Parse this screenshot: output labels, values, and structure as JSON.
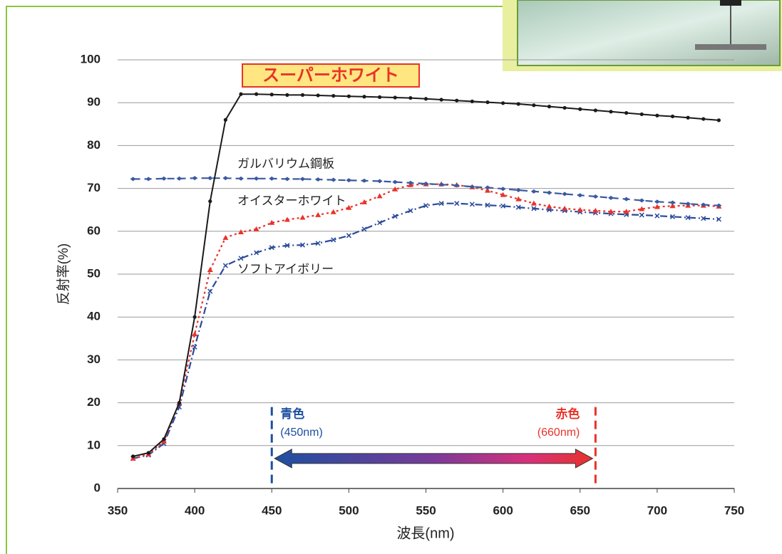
{
  "chart_data": {
    "type": "line",
    "title": "スーパーホワイト",
    "xlabel": "波長(nm)",
    "ylabel": "反射率(%)",
    "xlim": [
      350,
      750
    ],
    "xticks": [
      350,
      400,
      450,
      500,
      550,
      600,
      650,
      700,
      750
    ],
    "ylim": [
      0,
      100
    ],
    "yticks": [
      0,
      10,
      20,
      30,
      40,
      50,
      60,
      70,
      80,
      90,
      100
    ],
    "grid": true,
    "x": [
      360,
      370,
      380,
      390,
      400,
      410,
      420,
      430,
      440,
      450,
      460,
      470,
      480,
      490,
      500,
      510,
      520,
      530,
      540,
      550,
      560,
      570,
      580,
      590,
      600,
      610,
      620,
      630,
      640,
      650,
      660,
      670,
      680,
      690,
      700,
      710,
      720,
      730,
      740
    ],
    "series": [
      {
        "name": "スーパーホワイト",
        "color": "#1a1a1a",
        "line_style": "solid",
        "marker": "circle",
        "values": [
          7.5,
          8.3,
          11.5,
          20,
          40,
          67,
          86,
          92,
          92,
          91.9,
          91.8,
          91.8,
          91.7,
          91.6,
          91.5,
          91.4,
          91.3,
          91.2,
          91.1,
          90.9,
          90.7,
          90.5,
          90.3,
          90.1,
          89.9,
          89.7,
          89.4,
          89.1,
          88.8,
          88.5,
          88.2,
          87.9,
          87.6,
          87.3,
          87.0,
          86.8,
          86.5,
          86.2,
          85.9
        ]
      },
      {
        "name": "ガルバリウム鋼板",
        "color": "#3a5aa0",
        "line_style": "dashed",
        "marker": "diamond",
        "values": [
          72.2,
          72.2,
          72.3,
          72.3,
          72.4,
          72.4,
          72.4,
          72.3,
          72.3,
          72.3,
          72.2,
          72.2,
          72.1,
          72.0,
          71.9,
          71.8,
          71.7,
          71.5,
          71.3,
          71.1,
          70.9,
          70.7,
          70.4,
          70.2,
          69.9,
          69.6,
          69.3,
          69.0,
          68.7,
          68.4,
          68.1,
          67.8,
          67.5,
          67.2,
          66.9,
          66.7,
          66.4,
          66.2,
          66.0
        ]
      },
      {
        "name": "オイスターホワイト",
        "color": "#e8332a",
        "line_style": "dotted",
        "marker": "triangle",
        "values": [
          7,
          8,
          11,
          20,
          36,
          51,
          58.5,
          59.8,
          60.5,
          62,
          62.7,
          63.2,
          63.8,
          64.5,
          65.5,
          66.8,
          68.2,
          69.8,
          70.8,
          71,
          71,
          70.8,
          70.3,
          69.5,
          68.5,
          67.5,
          66.5,
          65.8,
          65.3,
          65,
          64.8,
          64.6,
          64.6,
          65.2,
          65.7,
          65.9,
          66,
          66,
          65.8
        ]
      },
      {
        "name": "ソフトアイボリー",
        "color": "#2a4a9a",
        "line_style": "dashdot",
        "marker": "cross",
        "values": [
          7,
          7.8,
          10.5,
          19,
          33,
          46,
          52,
          53.7,
          55,
          56.2,
          56.7,
          56.8,
          57.2,
          58,
          59,
          60.5,
          62,
          63.5,
          64.8,
          66,
          66.5,
          66.5,
          66.3,
          66.1,
          65.9,
          65.6,
          65.3,
          65,
          64.8,
          64.5,
          64.3,
          64.1,
          63.9,
          63.8,
          63.6,
          63.4,
          63.2,
          63,
          62.8
        ]
      }
    ],
    "reference_lines": [
      {
        "x": 450,
        "label": "青色",
        "sublabel": "(450nm)",
        "color": "#1e4fa0"
      },
      {
        "x": 660,
        "label": "赤色",
        "sublabel": "(660nm)",
        "color": "#e8332a"
      }
    ]
  }
}
